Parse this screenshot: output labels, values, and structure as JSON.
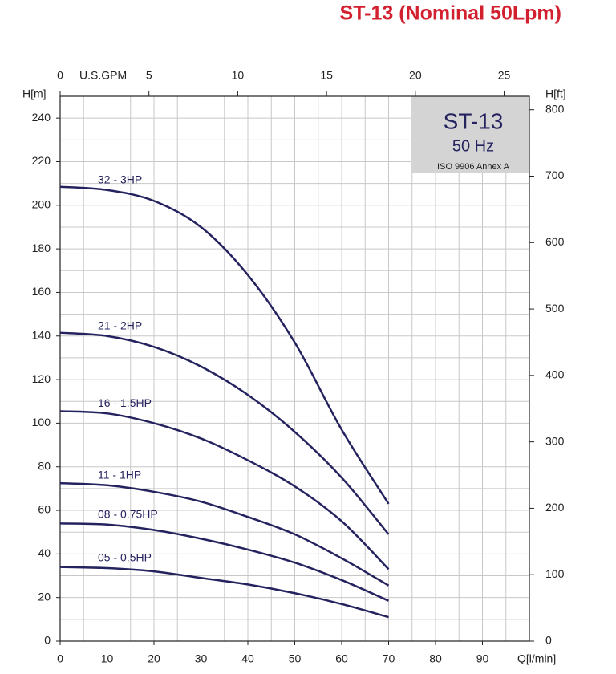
{
  "chart_data": {
    "type": "line",
    "title": "ST-13 (Nominal 50Lpm)",
    "box_title": "ST-13",
    "box_subtitle": "50 Hz",
    "box_note": "ISO 9906 Annex A",
    "xlabel": "Q[l/min]",
    "ylabel": "H[m]",
    "y2label": "H[ft]",
    "x2label": "U.S.GPM",
    "xlim": [
      0,
      100
    ],
    "xticks": [
      0,
      10,
      20,
      30,
      40,
      50,
      60,
      70,
      80,
      90
    ],
    "ylim": [
      0,
      250
    ],
    "yticks": [
      0,
      20,
      40,
      60,
      80,
      100,
      120,
      140,
      160,
      180,
      200,
      220,
      240
    ],
    "y2lim": [
      0,
      820.2
    ],
    "y2ticks": [
      0,
      100,
      200,
      300,
      400,
      500,
      600,
      700,
      800
    ],
    "x2lim": [
      0,
      26.42
    ],
    "x2ticks": [
      0,
      5,
      10,
      15,
      20,
      25
    ],
    "xminor": 5,
    "yminor": 10,
    "grid": true,
    "x": [
      0,
      10,
      20,
      30,
      40,
      50,
      60,
      70
    ],
    "series": [
      {
        "name": "32 - 3HP",
        "color": "#25235f",
        "values": [
          208.5,
          207,
          202,
          190,
          168,
          137,
          97,
          63
        ]
      },
      {
        "name": "21 - 2HP",
        "color": "#25235f",
        "values": [
          141.5,
          140,
          135,
          126,
          113,
          96,
          75,
          49
        ]
      },
      {
        "name": "16 - 1.5HP",
        "color": "#25235f",
        "values": [
          105.5,
          104.5,
          100,
          93,
          83,
          71,
          55,
          33
        ]
      },
      {
        "name": "11 - 1HP",
        "color": "#25235f",
        "values": [
          72.5,
          71.5,
          68.5,
          64,
          57,
          49,
          38,
          25.5
        ]
      },
      {
        "name": "08 - 0.75HP",
        "color": "#25235f",
        "values": [
          54,
          53.5,
          51,
          47,
          42,
          36,
          28,
          18.5
        ]
      },
      {
        "name": "05 - 0.5HP",
        "color": "#25235f",
        "values": [
          34,
          33.5,
          32,
          29,
          26,
          22,
          17,
          11
        ]
      }
    ]
  }
}
